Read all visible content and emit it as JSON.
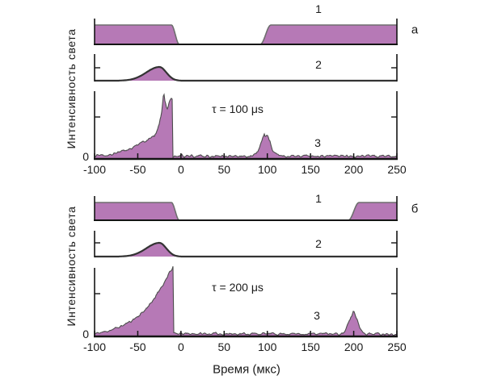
{
  "axes": {
    "x_label": "Время (мкс)",
    "y_label": "Интенсивность света",
    "zero_label": "0"
  },
  "colors": {
    "fill": "#b679b6",
    "pulse_stroke": "#6e6e6e",
    "bump_stroke": "#333333",
    "trace_stroke": "#4d4d4d",
    "axis": "#141414"
  },
  "chart_data": [
    {
      "panel_label": "а",
      "type": "area",
      "x_range": [
        -100,
        250
      ],
      "x_ticks": [
        -100,
        -50,
        0,
        50,
        100,
        150,
        200,
        250
      ],
      "grid": false,
      "traces": [
        {
          "label": "1",
          "kind": "square-pulse",
          "fall_start": -11,
          "fall_end": -2,
          "rise_start": 92,
          "rise_end": 104
        },
        {
          "label": "2",
          "kind": "bump",
          "center": -25,
          "sigma_left": 15,
          "sigma_right": 8,
          "amplitude": 1.0
        },
        {
          "label": "3",
          "kind": "noisy-burst",
          "annotation": "τ = 100 μs",
          "cliff": -10,
          "profile": [
            [
              -100,
              0
            ],
            [
              -85,
              0.02
            ],
            [
              -75,
              0.05
            ],
            [
              -65,
              0.09
            ],
            [
              -55,
              0.14
            ],
            [
              -45,
              0.2
            ],
            [
              -37,
              0.26
            ],
            [
              -31,
              0.31
            ],
            [
              -28,
              0.39
            ],
            [
              -25,
              0.52
            ],
            [
              -22,
              0.73
            ],
            [
              -20,
              1.0
            ],
            [
              -18,
              0.84
            ],
            [
              -16,
              0.73
            ],
            [
              -14,
              0.81
            ],
            [
              -12,
              0.91
            ],
            [
              -10.5,
              0.96
            ],
            [
              -10,
              0.93
            ]
          ],
          "echo_center": 98,
          "echo_sigma": 5.5,
          "echo_height": 0.33,
          "noise_floor": 0.035,
          "jag": 0.05
        }
      ]
    },
    {
      "panel_label": "б",
      "type": "area",
      "x_range": [
        -100,
        250
      ],
      "x_ticks": [
        -100,
        -50,
        0,
        50,
        100,
        150,
        200,
        250
      ],
      "grid": false,
      "traces": [
        {
          "label": "1",
          "kind": "square-pulse",
          "fall_start": -11,
          "fall_end": -2,
          "rise_start": 194,
          "rise_end": 206
        },
        {
          "label": "2",
          "kind": "bump",
          "center": -25,
          "sigma_left": 15,
          "sigma_right": 8,
          "amplitude": 1.0
        },
        {
          "label": "3",
          "kind": "noisy-burst",
          "annotation": "τ = 200 μs",
          "cliff": -9,
          "profile": [
            [
              -100,
              0
            ],
            [
              -88,
              0.03
            ],
            [
              -78,
              0.07
            ],
            [
              -68,
              0.12
            ],
            [
              -58,
              0.19
            ],
            [
              -48,
              0.28
            ],
            [
              -40,
              0.38
            ],
            [
              -33,
              0.49
            ],
            [
              -27,
              0.6
            ],
            [
              -21,
              0.73
            ],
            [
              -16,
              0.85
            ],
            [
              -12,
              0.94
            ],
            [
              -9,
              1.0
            ]
          ],
          "echo_center": 200,
          "echo_sigma": 5,
          "echo_height": 0.3,
          "noise_floor": 0.03,
          "jag": 0.03
        }
      ]
    }
  ]
}
